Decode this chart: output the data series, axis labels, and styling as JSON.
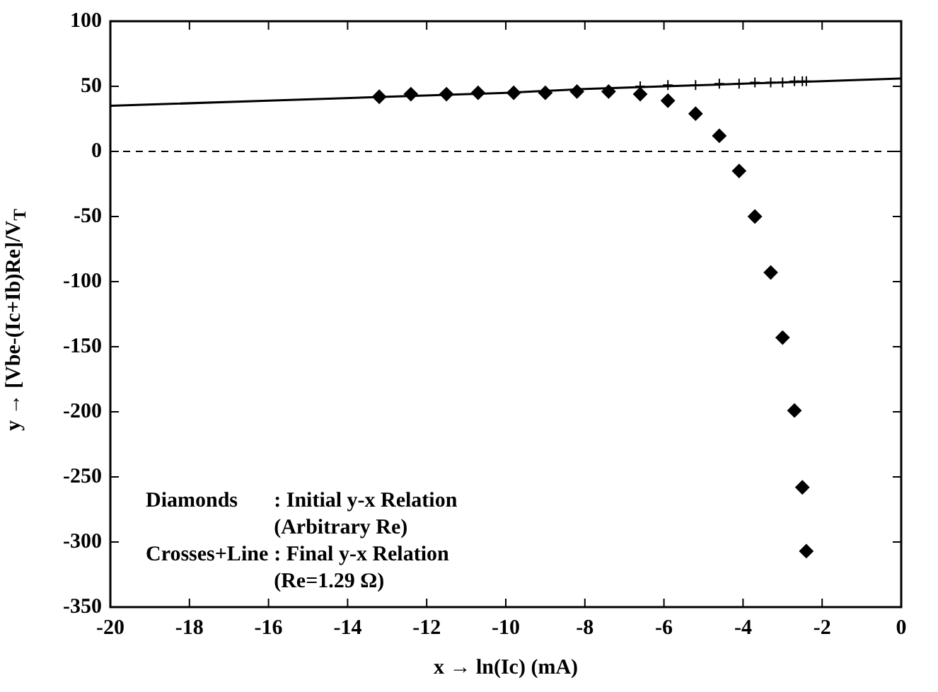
{
  "chart_data": {
    "type": "scatter",
    "xlabel": "x → ln(Ic) (mA)",
    "ylabel": "y → [Vbe-(Ic+Ib)Re]/V$_{T}$",
    "xlim": [
      -20,
      0
    ],
    "xticks": [
      -20,
      -18,
      -16,
      -14,
      -12,
      -10,
      -8,
      -6,
      -4,
      -2,
      0
    ],
    "ylim": [
      -350,
      100
    ],
    "yticks": [
      -350,
      -300,
      -250,
      -200,
      -150,
      -100,
      -50,
      0,
      50,
      100
    ],
    "grid": false,
    "legend": false,
    "ref_lines": [
      {
        "axis": "y",
        "value": 0,
        "line_style": "dashed",
        "color": "#000000"
      }
    ],
    "annotations": [
      "Diamonds",
      ": Initial y-x Relation",
      "(Arbitrary Re)",
      "Crosses+Line",
      ": Final y-x Relation",
      "(Re=1.29 Ω)"
    ],
    "series": [
      {
        "type": "line",
        "color": "#000000",
        "marker": "none",
        "line_style": "solid",
        "x": [
          -20,
          -16,
          -13,
          -10,
          -8,
          -6,
          -4,
          -2,
          0
        ],
        "values": [
          35,
          39,
          42,
          45,
          48,
          50,
          52,
          54,
          56
        ]
      },
      {
        "color": "#000000",
        "marker": "diamond",
        "x": [
          -13.2,
          -12.4,
          -11.5,
          -10.7,
          -9.8,
          -9.0,
          -8.2,
          -7.4,
          -6.6,
          -5.9,
          -5.2,
          -4.6,
          -4.1,
          -3.7,
          -3.3,
          -3.0,
          -2.7,
          -2.5,
          -2.4
        ],
        "values": [
          42,
          44,
          44,
          45,
          45,
          45,
          46,
          46,
          44,
          39,
          29,
          12,
          -15,
          -50,
          -93,
          -143,
          -199,
          -258,
          -307
        ]
      },
      {
        "color": "#000000",
        "marker": "cross",
        "x": [
          -6.6,
          -5.9,
          -5.2,
          -4.6,
          -4.1,
          -3.7,
          -3.3,
          -3.0,
          -2.7,
          -2.5,
          -2.4
        ],
        "values": [
          50,
          51,
          51,
          52,
          52,
          53,
          53,
          53,
          54,
          54,
          54
        ]
      }
    ]
  }
}
